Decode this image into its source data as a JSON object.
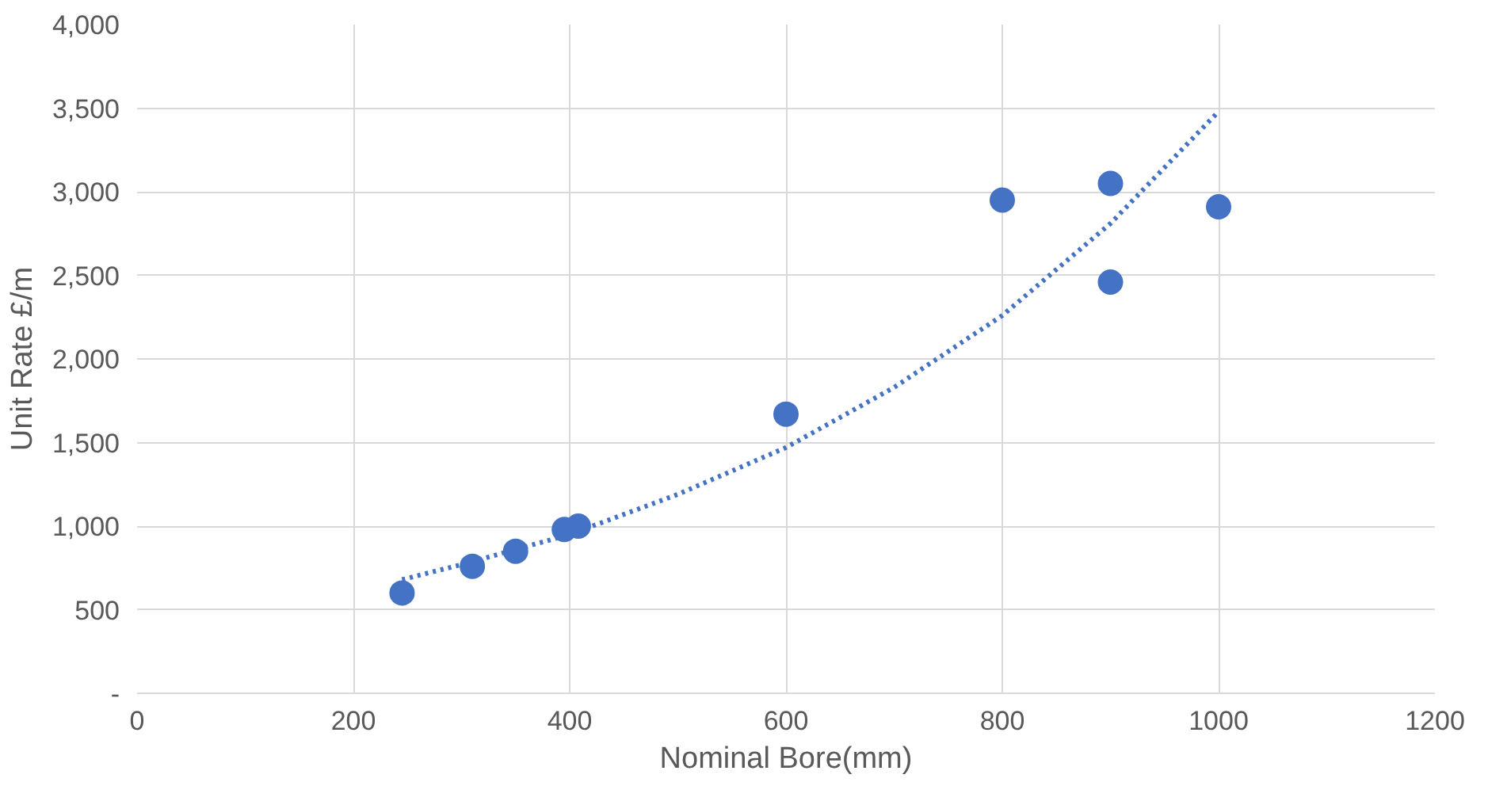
{
  "chart_data": {
    "type": "scatter",
    "xlabel": "Nominal Bore(mm)",
    "ylabel": "Unit Rate £/m",
    "xlim": [
      0,
      1200
    ],
    "xticks": [
      0,
      200,
      400,
      600,
      800,
      1000,
      1200
    ],
    "ylim": [
      0,
      4000
    ],
    "yticks": [
      {
        "value": 0,
        "label": "-"
      },
      {
        "value": 500,
        "label": "500"
      },
      {
        "value": 1000,
        "label": "1,000"
      },
      {
        "value": 1500,
        "label": "1,500"
      },
      {
        "value": 2000,
        "label": "2,000"
      },
      {
        "value": 2500,
        "label": "2,500"
      },
      {
        "value": 3000,
        "label": "3,000"
      },
      {
        "value": 3500,
        "label": "3,500"
      },
      {
        "value": 4000,
        "label": "4,000"
      }
    ],
    "grid": true,
    "series": [
      {
        "color": "#4472c4",
        "marker": "circle",
        "x": [
          245,
          310,
          350,
          395,
          408,
          600,
          800,
          900,
          900,
          1000
        ],
        "values": [
          600,
          760,
          850,
          980,
          1000,
          1670,
          2950,
          3050,
          2460,
          2910
        ]
      },
      {
        "type": "line",
        "color": "#4472c4",
        "line_style": "dotted",
        "x": [
          245,
          300,
          400,
          500,
          600,
          700,
          800,
          900,
          1000
        ],
        "values": [
          680,
          770,
          950,
          1190,
          1470,
          1830,
          2260,
          2810,
          3480
        ]
      }
    ]
  }
}
